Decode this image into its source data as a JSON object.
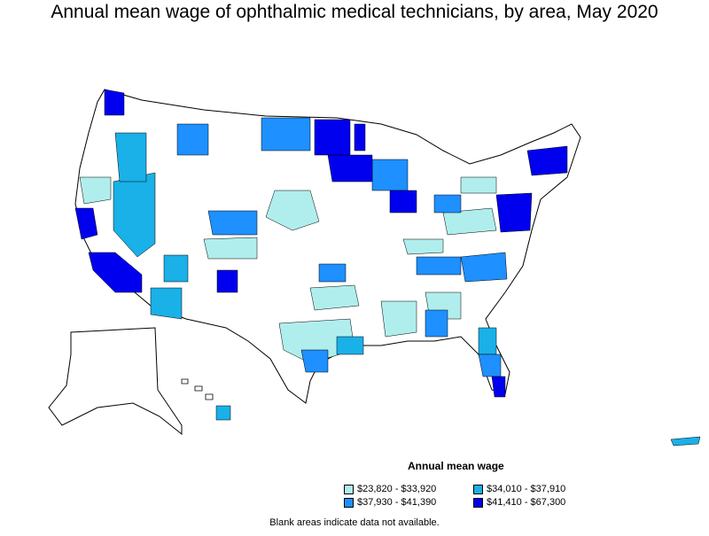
{
  "title": "Annual mean wage of ophthalmic medical technicians, by area, May 2020",
  "legend": {
    "title": "Annual mean wage",
    "items": [
      {
        "label": "$23,820 - $33,920",
        "color": "#b0eeee"
      },
      {
        "label": "$34,010 - $37,910",
        "color": "#1ab0e8"
      },
      {
        "label": "$37,930 - $41,390",
        "color": "#1e90ff"
      },
      {
        "label": "$41,410 - $67,300",
        "color": "#0000ee"
      }
    ]
  },
  "note": "Blank areas indicate data not available.",
  "colors": {
    "blank": "#ffffff",
    "border": "#000000"
  }
}
